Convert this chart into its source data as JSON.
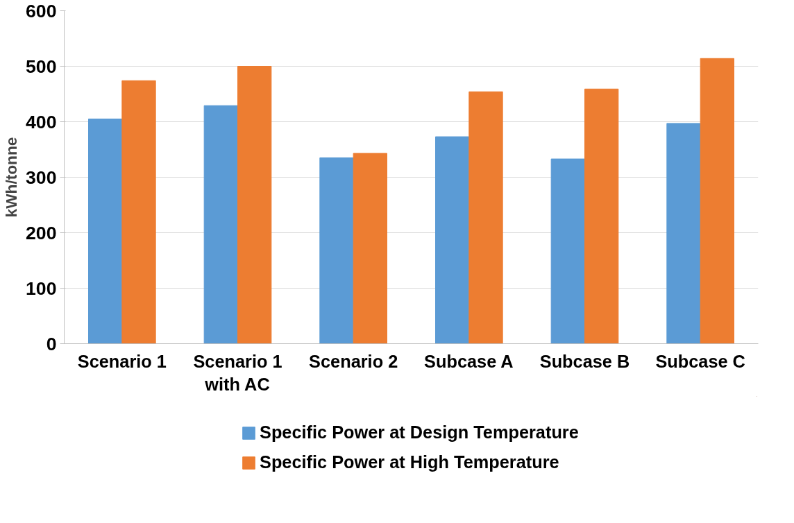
{
  "chart_data": {
    "type": "bar",
    "ylabel": "kWh/tonne",
    "categories": [
      "Scenario 1",
      "Scenario 1\nwith AC",
      "Scenario 2",
      "Subcase A",
      "Subcase B",
      "Subcase C"
    ],
    "series": [
      {
        "name": "Specific Power at Design Temperature",
        "color": "#5b9bd5",
        "values": [
          405,
          429,
          335,
          373,
          333,
          397
        ]
      },
      {
        "name": "Specific Power at High Temperature",
        "color": "#ed7d31",
        "values": [
          474,
          500,
          343,
          454,
          459,
          514
        ]
      }
    ],
    "ylim": [
      0,
      600
    ],
    "yticks": [
      0,
      100,
      200,
      300,
      400,
      500,
      600
    ],
    "grid": "y",
    "legend": "bottom"
  }
}
